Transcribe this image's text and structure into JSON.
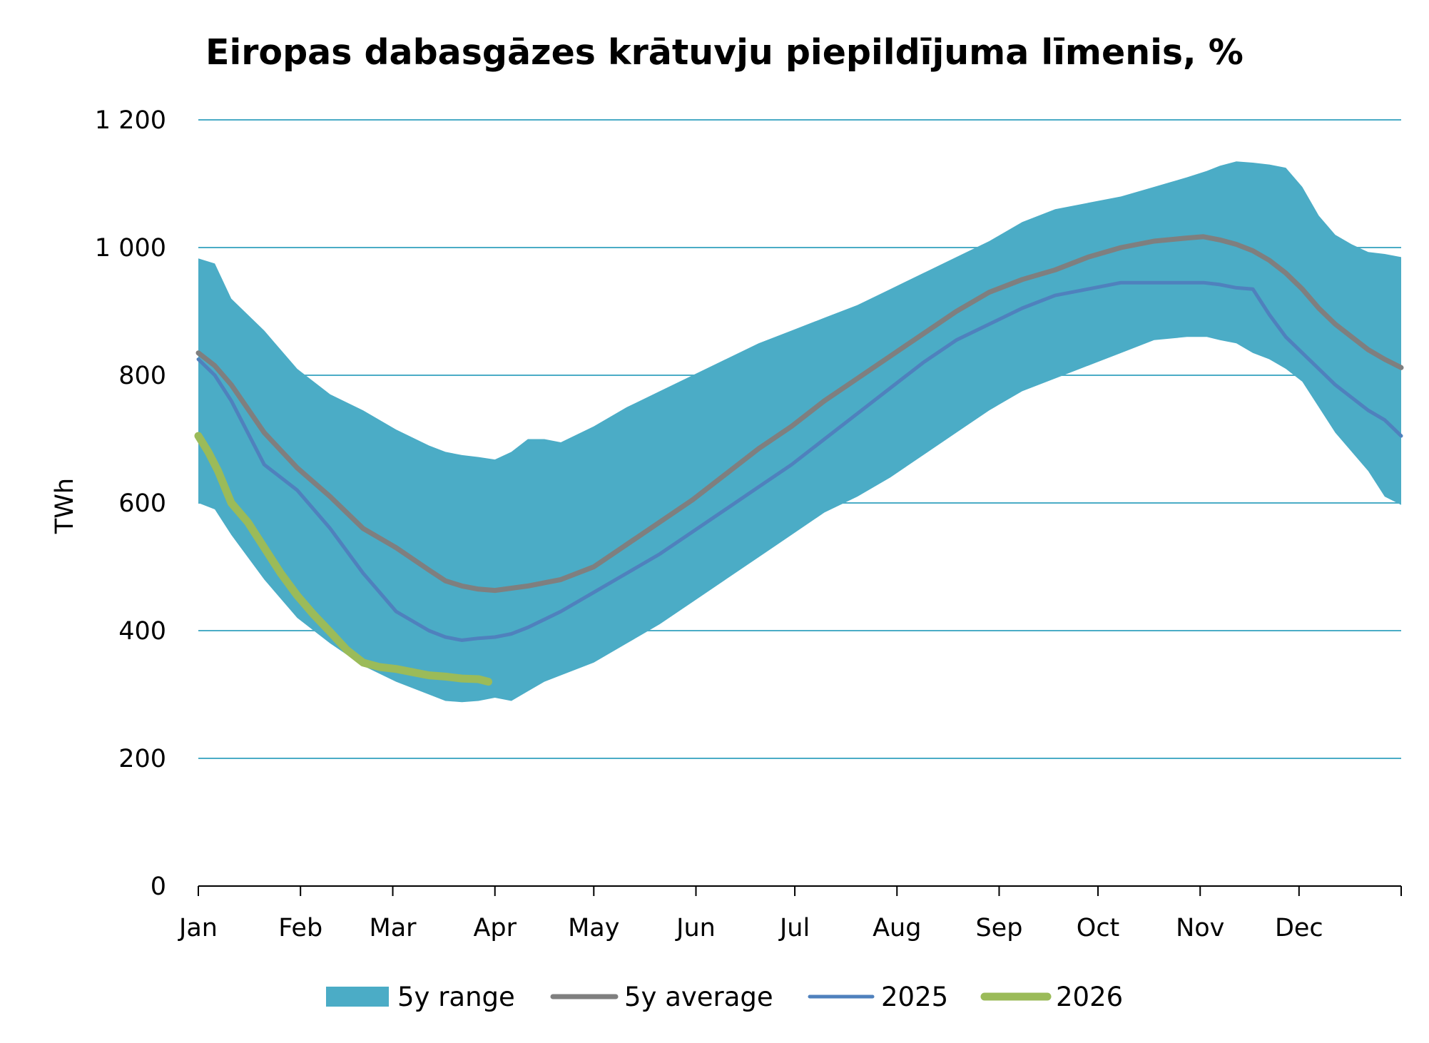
{
  "chart_data": {
    "type": "line",
    "title": "Eiropas dabasgāzes krātuvju piepildījuma līmenis, %",
    "ylabel": "TWh",
    "xlabel": "",
    "ylim": [
      0,
      1200
    ],
    "xlim": [
      0,
      365
    ],
    "y_ticks": [
      {
        "value": 0,
        "label": "0"
      },
      {
        "value": 200,
        "label": "200"
      },
      {
        "value": 400,
        "label": "400"
      },
      {
        "value": 600,
        "label": "600"
      },
      {
        "value": 800,
        "label": "800"
      },
      {
        "value": 1000,
        "label": "1 000"
      },
      {
        "value": 1200,
        "label": "1 200"
      }
    ],
    "x_ticks": [
      {
        "day": 0,
        "label": "Jan"
      },
      {
        "day": 31,
        "label": "Feb"
      },
      {
        "day": 59,
        "label": "Mar"
      },
      {
        "day": 90,
        "label": "Apr"
      },
      {
        "day": 120,
        "label": "May"
      },
      {
        "day": 151,
        "label": "Jun"
      },
      {
        "day": 181,
        "label": "Jul"
      },
      {
        "day": 212,
        "label": "Aug"
      },
      {
        "day": 243,
        "label": "Sep"
      },
      {
        "day": 273,
        "label": "Oct"
      },
      {
        "day": 304,
        "label": "Nov"
      },
      {
        "day": 334,
        "label": "Dec"
      }
    ],
    "x_tick_marks": [
      0,
      31,
      59,
      90,
      120,
      151,
      181,
      212,
      243,
      273,
      304,
      334,
      365
    ],
    "grid": "horizontal",
    "legend_position": "bottom",
    "colors": {
      "range": "#4bacc6",
      "average": "#7f7f7f",
      "y2025": "#4f81bd",
      "y2026": "#9bbb59",
      "grid": "#4bacc6",
      "axis": "#000000"
    },
    "range_band": {
      "name": "5y range",
      "x": [
        0,
        5,
        10,
        20,
        30,
        40,
        50,
        60,
        70,
        75,
        80,
        85,
        90,
        95,
        100,
        105,
        110,
        120,
        130,
        140,
        150,
        160,
        170,
        180,
        190,
        200,
        210,
        220,
        230,
        240,
        250,
        260,
        270,
        280,
        290,
        300,
        306,
        310,
        315,
        320,
        325,
        330,
        335,
        340,
        345,
        350,
        355,
        360,
        365
      ],
      "upper": [
        983,
        975,
        920,
        870,
        810,
        770,
        745,
        715,
        690,
        680,
        675,
        672,
        668,
        680,
        700,
        700,
        695,
        720,
        750,
        775,
        800,
        825,
        850,
        870,
        890,
        910,
        935,
        960,
        985,
        1010,
        1040,
        1060,
        1070,
        1080,
        1095,
        1110,
        1120,
        1128,
        1135,
        1133,
        1130,
        1125,
        1095,
        1050,
        1020,
        1005,
        993,
        990,
        985
      ],
      "lower": [
        600,
        590,
        550,
        480,
        420,
        380,
        345,
        320,
        300,
        290,
        288,
        290,
        295,
        290,
        305,
        320,
        330,
        350,
        380,
        410,
        445,
        480,
        515,
        550,
        585,
        610,
        640,
        675,
        710,
        745,
        775,
        795,
        815,
        835,
        855,
        860,
        860,
        855,
        850,
        835,
        825,
        810,
        790,
        750,
        710,
        680,
        650,
        610,
        597
      ]
    },
    "series": [
      {
        "name": "5y average",
        "x": [
          0,
          5,
          10,
          20,
          30,
          40,
          50,
          60,
          70,
          75,
          80,
          85,
          90,
          100,
          110,
          120,
          130,
          140,
          150,
          160,
          170,
          180,
          190,
          200,
          210,
          220,
          230,
          240,
          250,
          260,
          270,
          280,
          290,
          300,
          305,
          310,
          315,
          320,
          325,
          330,
          335,
          340,
          345,
          350,
          355,
          360,
          365
        ],
        "values": [
          835,
          815,
          785,
          710,
          655,
          610,
          560,
          530,
          495,
          478,
          470,
          465,
          463,
          470,
          480,
          500,
          535,
          570,
          605,
          645,
          685,
          720,
          760,
          795,
          830,
          865,
          900,
          930,
          950,
          965,
          985,
          1000,
          1010,
          1015,
          1017,
          1012,
          1005,
          995,
          980,
          960,
          935,
          905,
          880,
          860,
          840,
          825,
          812
        ]
      },
      {
        "name": "2025",
        "x": [
          0,
          5,
          10,
          20,
          30,
          40,
          50,
          55,
          60,
          70,
          75,
          80,
          85,
          90,
          95,
          100,
          110,
          120,
          130,
          140,
          150,
          160,
          170,
          180,
          190,
          200,
          210,
          220,
          230,
          240,
          250,
          260,
          270,
          280,
          290,
          300,
          305,
          310,
          315,
          320,
          325,
          330,
          335,
          340,
          345,
          350,
          355,
          360,
          365
        ],
        "values": [
          825,
          800,
          760,
          660,
          620,
          560,
          490,
          460,
          430,
          400,
          390,
          385,
          388,
          390,
          395,
          405,
          430,
          460,
          490,
          520,
          555,
          590,
          625,
          660,
          700,
          740,
          780,
          820,
          855,
          880,
          905,
          925,
          935,
          945,
          945,
          945,
          945,
          942,
          937,
          935,
          895,
          860,
          835,
          810,
          785,
          765,
          745,
          730,
          705
        ]
      },
      {
        "name": "2026",
        "x": [
          0,
          3,
          6,
          10,
          15,
          20,
          25,
          30,
          35,
          40,
          45,
          50,
          55,
          60,
          65,
          70,
          75,
          80,
          85,
          88
        ],
        "values": [
          705,
          680,
          650,
          600,
          570,
          530,
          490,
          455,
          425,
          398,
          370,
          350,
          343,
          340,
          335,
          330,
          328,
          325,
          324,
          320
        ]
      }
    ],
    "legend": [
      {
        "key": "range",
        "label": "5y range"
      },
      {
        "key": "average",
        "label": "5y average"
      },
      {
        "key": "y2025",
        "label": "2025"
      },
      {
        "key": "y2026",
        "label": "2026"
      }
    ]
  }
}
